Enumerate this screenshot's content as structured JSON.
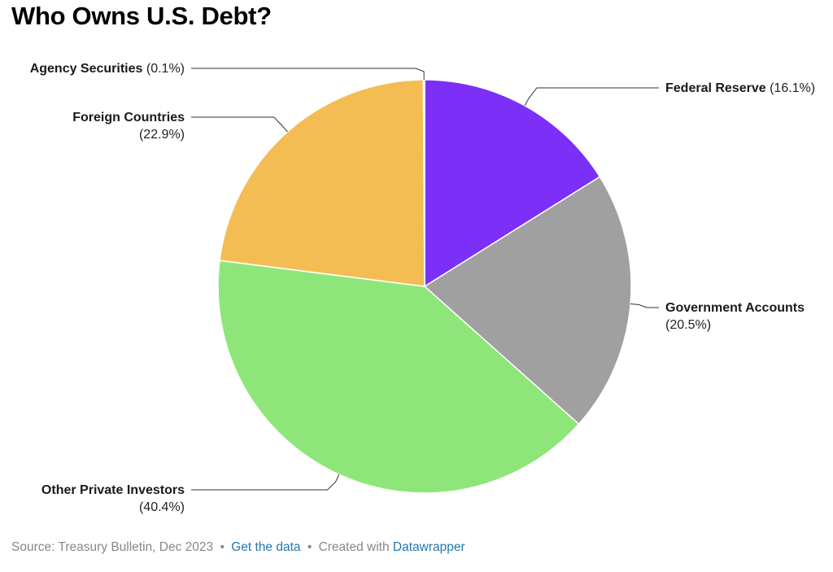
{
  "title": "Who Owns U.S. Debt?",
  "chart_data": {
    "type": "pie",
    "title": "Who Owns U.S. Debt?",
    "slices": [
      {
        "name": "Federal Reserve",
        "value": 16.1,
        "display": "(16.1%)",
        "color": "#7b2ff7",
        "side": "right"
      },
      {
        "name": "Government Accounts",
        "value": 20.5,
        "display": "(20.5%)",
        "color": "#a0a0a0",
        "side": "right"
      },
      {
        "name": "Other Private Investors",
        "value": 40.4,
        "display": "(40.4%)",
        "color": "#8ee67a",
        "side": "left"
      },
      {
        "name": "Foreign Countries",
        "value": 22.9,
        "display": "(22.9%)",
        "color": "#f3bd54",
        "side": "left"
      },
      {
        "name": "Agency Securities",
        "value": 0.1,
        "display": "(0.1%)",
        "color": "#7b2ff7",
        "side": "left"
      }
    ],
    "start_angle": "12 o'clock",
    "direction": "clockwise",
    "legend": "none"
  },
  "footer": {
    "source": "Source: Treasury Bulletin, Dec 2023",
    "separator": "•",
    "get_data": "Get the data",
    "created_with": "Created with",
    "datawrapper": "Datawrapper"
  }
}
